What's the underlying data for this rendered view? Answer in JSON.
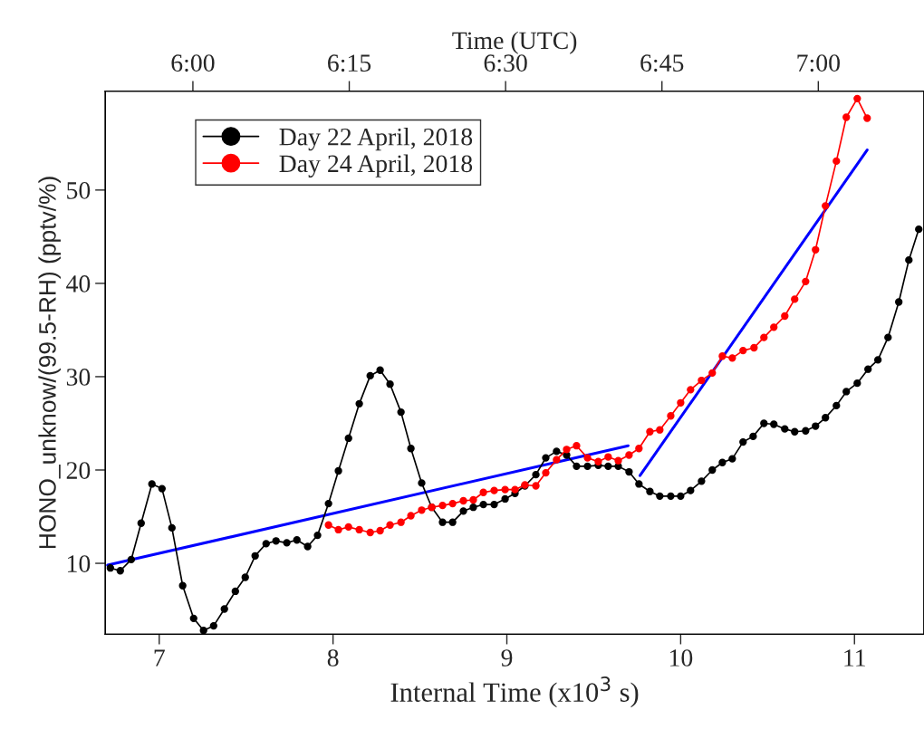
{
  "chart_data": {
    "type": "line",
    "xlabel": "Internal Time (x10$^{3}$ s)",
    "ylabel": "HONO_unknow/(99.5-RH) (pptv/%)",
    "x2label": "Time (UTC)",
    "xlim": [
      6.69,
      11.4
    ],
    "xticks": [
      7,
      8,
      9,
      10,
      11
    ],
    "ylim": [
      2.4,
      60.6
    ],
    "yticks": [
      10,
      20,
      30,
      40,
      50
    ],
    "x2lim": [
      5.86,
      7.169
    ],
    "x2ticks": [
      {
        "value": 6,
        "label": "6:00"
      },
      {
        "value": 6.25,
        "label": "6:15"
      },
      {
        "value": 6.5,
        "label": "6:30"
      },
      {
        "value": 6.75,
        "label": "6:45"
      },
      {
        "value": 7,
        "label": "7:00"
      }
    ],
    "grid": false,
    "legend": "top left",
    "marker": "circle",
    "line_style": "solid",
    "series": [
      {
        "name": "Day 22 April, 2018",
        "color": "#000000",
        "x": [
          6.719,
          6.776,
          6.839,
          6.896,
          6.958,
          7.016,
          7.073,
          7.135,
          7.198,
          7.255,
          7.313,
          7.375,
          7.438,
          7.495,
          7.552,
          7.615,
          7.672,
          7.734,
          7.792,
          7.854,
          7.911,
          7.974,
          8.031,
          8.089,
          8.151,
          8.214,
          8.271,
          8.328,
          8.391,
          8.448,
          8.51,
          8.568,
          8.63,
          8.688,
          8.75,
          8.807,
          8.865,
          8.927,
          8.99,
          9.047,
          9.104,
          9.167,
          9.224,
          9.286,
          9.344,
          9.401,
          9.464,
          9.526,
          9.583,
          9.641,
          9.703,
          9.76,
          9.823,
          9.88,
          9.943,
          10.0,
          10.057,
          10.12,
          10.182,
          10.24,
          10.297,
          10.359,
          10.417,
          10.479,
          10.536,
          10.599,
          10.656,
          10.719,
          10.776,
          10.833,
          10.896,
          10.953,
          11.016,
          11.078,
          11.135,
          11.193,
          11.255,
          11.313,
          11.37
        ],
        "values": [
          9.5,
          9.2,
          10.4,
          14.3,
          18.5,
          18.0,
          13.8,
          7.6,
          4.1,
          2.8,
          3.3,
          5.1,
          7.0,
          8.5,
          10.8,
          12.1,
          12.4,
          12.2,
          12.5,
          11.8,
          13.0,
          16.4,
          19.9,
          23.4,
          27.1,
          30.1,
          30.7,
          29.2,
          26.2,
          22.3,
          18.6,
          16.0,
          14.4,
          14.4,
          15.6,
          16.0,
          16.3,
          16.3,
          16.9,
          17.5,
          18.3,
          19.5,
          21.3,
          22.0,
          21.6,
          20.4,
          20.4,
          20.5,
          20.4,
          20.4,
          19.8,
          18.5,
          17.7,
          17.2,
          17.2,
          17.2,
          17.8,
          18.8,
          20.0,
          20.8,
          21.2,
          23.0,
          23.6,
          25.0,
          24.9,
          24.4,
          24.1,
          24.2,
          24.7,
          25.6,
          26.9,
          28.4,
          29.3,
          30.8,
          31.8,
          34.2,
          38.0,
          42.5,
          45.8
        ]
      },
      {
        "name": "Day 24 April, 2018",
        "color": "#ff0000",
        "x": [
          7.974,
          8.031,
          8.089,
          8.151,
          8.214,
          8.271,
          8.328,
          8.391,
          8.448,
          8.51,
          8.568,
          8.63,
          8.688,
          8.75,
          8.807,
          8.865,
          8.927,
          8.99,
          9.047,
          9.104,
          9.167,
          9.224,
          9.286,
          9.344,
          9.401,
          9.464,
          9.526,
          9.583,
          9.641,
          9.703,
          9.76,
          9.823,
          9.88,
          9.943,
          10.0,
          10.057,
          10.12,
          10.182,
          10.24,
          10.297,
          10.359,
          10.422,
          10.479,
          10.536,
          10.599,
          10.656,
          10.719,
          10.776,
          10.833,
          10.896,
          10.953,
          11.016,
          11.073
        ],
        "values": [
          14.1,
          13.6,
          13.9,
          13.6,
          13.3,
          13.5,
          14.1,
          14.4,
          15.1,
          15.7,
          16.0,
          16.2,
          16.4,
          16.7,
          16.8,
          17.6,
          17.8,
          17.9,
          17.9,
          18.4,
          18.3,
          19.7,
          21.1,
          22.2,
          22.6,
          21.3,
          20.9,
          21.4,
          21.0,
          21.6,
          22.3,
          24.1,
          24.3,
          25.8,
          27.2,
          28.6,
          29.6,
          30.4,
          32.2,
          32.0,
          32.8,
          33.1,
          34.2,
          35.3,
          36.5,
          38.3,
          40.2,
          43.6,
          48.3,
          53.1,
          57.8,
          59.8,
          57.7
        ]
      },
      {
        "color": "#0000ff",
        "marker": "none",
        "x": [
          6.703,
          9.698
        ],
        "values": [
          9.8,
          22.6
        ]
      },
      {
        "color": "#0000ff",
        "marker": "none",
        "x": [
          9.766,
          11.073
        ],
        "values": [
          19.4,
          54.3
        ]
      }
    ]
  }
}
